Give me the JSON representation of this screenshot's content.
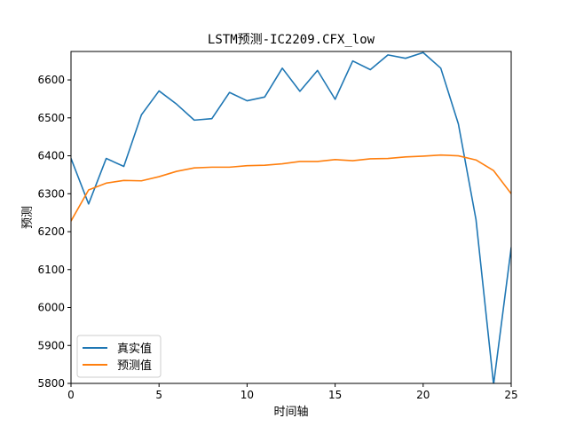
{
  "chart_data": {
    "type": "line",
    "title": "LSTM预测-IC2209.CFX_low",
    "xlabel": "时间轴",
    "ylabel": "预测",
    "xlim": [
      0,
      25
    ],
    "ylim": [
      5800,
      6675
    ],
    "xticks": [
      0,
      5,
      10,
      15,
      20,
      25
    ],
    "yticks": [
      5800,
      5900,
      6000,
      6100,
      6200,
      6300,
      6400,
      6500,
      6600
    ],
    "grid": false,
    "legend_position": "lower-left",
    "x": [
      0,
      1,
      2,
      3,
      4,
      5,
      6,
      7,
      8,
      9,
      10,
      11,
      12,
      13,
      14,
      15,
      16,
      17,
      18,
      19,
      20,
      21,
      22,
      23,
      24,
      25
    ],
    "series": [
      {
        "name": "真实值",
        "color": "#1f77b4",
        "values": [
          6393,
          6273,
          6393,
          6372,
          6508,
          6571,
          6536,
          6494,
          6498,
          6567,
          6545,
          6555,
          6631,
          6570,
          6625,
          6549,
          6650,
          6627,
          6666,
          6657,
          6672,
          6631,
          6484,
          6232,
          5797,
          6158
        ]
      },
      {
        "name": "预测值",
        "color": "#ff7f0e",
        "values": [
          6228,
          6310,
          6328,
          6335,
          6334,
          6345,
          6359,
          6368,
          6370,
          6370,
          6374,
          6375,
          6379,
          6385,
          6385,
          6390,
          6387,
          6392,
          6393,
          6397,
          6399,
          6402,
          6400,
          6389,
          6361,
          6300
        ]
      }
    ]
  }
}
